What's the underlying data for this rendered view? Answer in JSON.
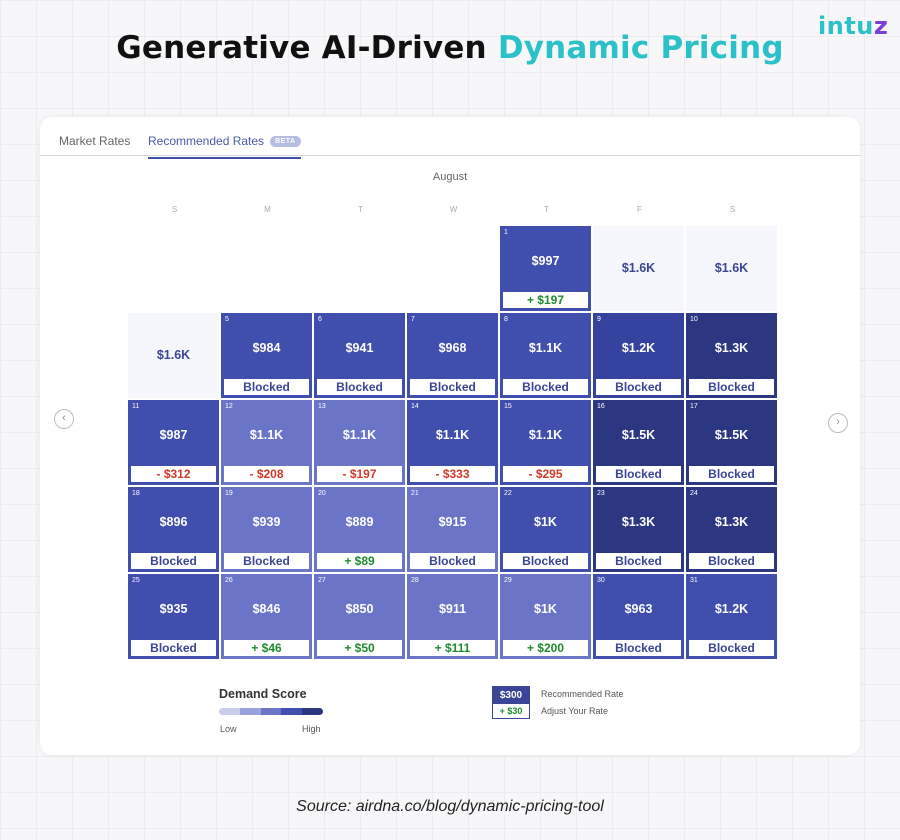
{
  "header": {
    "title_part1": "Generative AI-Driven",
    "title_part2": "Dynamic Pricing",
    "logo_main": "intu",
    "logo_tail": "z",
    "accent_color": "#2cc1c9"
  },
  "tabs": [
    {
      "label": "Market Rates"
    },
    {
      "label": "Recommended Rates",
      "badge": "BETA"
    }
  ],
  "calendar": {
    "month": "August",
    "weekdays": [
      "S",
      "M",
      "T",
      "W",
      "T",
      "F",
      "S"
    ],
    "cells": [
      {
        "row": 0,
        "col": 4,
        "day": "1",
        "price": "$997",
        "status": "+ $197",
        "type": "plus",
        "demand": 3
      },
      {
        "row": 0,
        "col": 5,
        "day": "",
        "price": "$1.6K",
        "status": "",
        "type": "empty",
        "demand": 0
      },
      {
        "row": 0,
        "col": 6,
        "day": "",
        "price": "$1.6K",
        "status": "",
        "type": "empty",
        "demand": 0
      },
      {
        "row": 1,
        "col": 0,
        "day": "",
        "price": "$1.6K",
        "status": "",
        "type": "empty",
        "demand": 0
      },
      {
        "row": 1,
        "col": 1,
        "day": "5",
        "price": "$984",
        "status": "Blocked",
        "type": "blocked",
        "demand": 3
      },
      {
        "row": 1,
        "col": 2,
        "day": "6",
        "price": "$941",
        "status": "Blocked",
        "type": "blocked",
        "demand": 3
      },
      {
        "row": 1,
        "col": 3,
        "day": "7",
        "price": "$968",
        "status": "Blocked",
        "type": "blocked",
        "demand": 3
      },
      {
        "row": 1,
        "col": 4,
        "day": "8",
        "price": "$1.1K",
        "status": "Blocked",
        "type": "blocked",
        "demand": 3
      },
      {
        "row": 1,
        "col": 5,
        "day": "9",
        "price": "$1.2K",
        "status": "Blocked",
        "type": "blocked",
        "demand": 4
      },
      {
        "row": 1,
        "col": 6,
        "day": "10",
        "price": "$1.3K",
        "status": "Blocked",
        "type": "blocked",
        "demand": 5
      },
      {
        "row": 2,
        "col": 0,
        "day": "11",
        "price": "$987",
        "status": "- $312",
        "type": "minus",
        "demand": 3
      },
      {
        "row": 2,
        "col": 1,
        "day": "12",
        "price": "$1.1K",
        "status": "- $208",
        "type": "minus",
        "demand": 2
      },
      {
        "row": 2,
        "col": 2,
        "day": "13",
        "price": "$1.1K",
        "status": "- $197",
        "type": "minus",
        "demand": 2
      },
      {
        "row": 2,
        "col": 3,
        "day": "14",
        "price": "$1.1K",
        "status": "- $333",
        "type": "minus",
        "demand": 3
      },
      {
        "row": 2,
        "col": 4,
        "day": "15",
        "price": "$1.1K",
        "status": "- $295",
        "type": "minus",
        "demand": 3
      },
      {
        "row": 2,
        "col": 5,
        "day": "16",
        "price": "$1.5K",
        "status": "Blocked",
        "type": "blocked",
        "demand": 5
      },
      {
        "row": 2,
        "col": 6,
        "day": "17",
        "price": "$1.5K",
        "status": "Blocked",
        "type": "blocked",
        "demand": 5
      },
      {
        "row": 3,
        "col": 0,
        "day": "18",
        "price": "$896",
        "status": "Blocked",
        "type": "blocked",
        "demand": 3
      },
      {
        "row": 3,
        "col": 1,
        "day": "19",
        "price": "$939",
        "status": "Blocked",
        "type": "blocked",
        "demand": 2
      },
      {
        "row": 3,
        "col": 2,
        "day": "20",
        "price": "$889",
        "status": "+ $89",
        "type": "plus",
        "demand": 2
      },
      {
        "row": 3,
        "col": 3,
        "day": "21",
        "price": "$915",
        "status": "Blocked",
        "type": "blocked",
        "demand": 2
      },
      {
        "row": 3,
        "col": 4,
        "day": "22",
        "price": "$1K",
        "status": "Blocked",
        "type": "blocked",
        "demand": 3
      },
      {
        "row": 3,
        "col": 5,
        "day": "23",
        "price": "$1.3K",
        "status": "Blocked",
        "type": "blocked",
        "demand": 5
      },
      {
        "row": 3,
        "col": 6,
        "day": "24",
        "price": "$1.3K",
        "status": "Blocked",
        "type": "blocked",
        "demand": 5
      },
      {
        "row": 4,
        "col": 0,
        "day": "25",
        "price": "$935",
        "status": "Blocked",
        "type": "blocked",
        "demand": 3
      },
      {
        "row": 4,
        "col": 1,
        "day": "26",
        "price": "$846",
        "status": "+ $46",
        "type": "plus",
        "demand": 2
      },
      {
        "row": 4,
        "col": 2,
        "day": "27",
        "price": "$850",
        "status": "+ $50",
        "type": "plus",
        "demand": 2
      },
      {
        "row": 4,
        "col": 3,
        "day": "28",
        "price": "$911",
        "status": "+ $111",
        "type": "plus",
        "demand": 2
      },
      {
        "row": 4,
        "col": 4,
        "day": "29",
        "price": "$1K",
        "status": "+ $200",
        "type": "plus",
        "demand": 2
      },
      {
        "row": 4,
        "col": 5,
        "day": "30",
        "price": "$963",
        "status": "Blocked",
        "type": "blocked",
        "demand": 3
      },
      {
        "row": 4,
        "col": 6,
        "day": "31",
        "price": "$1.2K",
        "status": "Blocked",
        "type": "blocked",
        "demand": 3
      }
    ],
    "demand_colors": [
      "#f6f7fc",
      "#c8cdeb",
      "#6b75c8",
      "#404ead",
      "#36439e",
      "#2c3782"
    ]
  },
  "legend": {
    "title": "Demand Score",
    "low": "Low",
    "high": "High",
    "scale_colors": [
      "#c8cdeb",
      "#9aa2dd",
      "#6b75c8",
      "#404ead",
      "#2c3782"
    ],
    "sample_rate": "$300",
    "sample_adjust": "+ $30",
    "recommended_label": "Recommended Rate",
    "adjust_label": "Adjust Your Rate"
  },
  "footer": {
    "source": "Source: airdna.co/blog/dynamic-pricing-tool"
  }
}
